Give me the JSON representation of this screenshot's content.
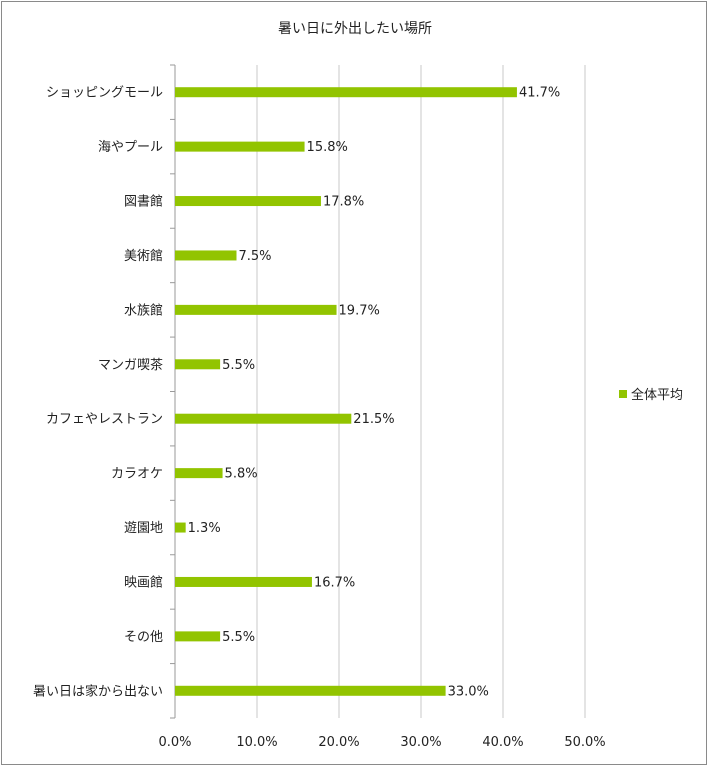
{
  "chart_data": {
    "type": "bar",
    "orientation": "horizontal",
    "title": "暑い日に外出したい場所",
    "categories": [
      "ショッピングモール",
      "海やプール",
      "図書館",
      "美術館",
      "水族館",
      "マンガ喫茶",
      "カフェやレストラン",
      "カラオケ",
      "遊園地",
      "映画館",
      "その他",
      "暑い日は家から出ない"
    ],
    "series": [
      {
        "name": "全体平均",
        "color": "#92c400",
        "values": [
          41.7,
          15.8,
          17.8,
          7.5,
          19.7,
          5.5,
          21.5,
          5.8,
          1.3,
          16.7,
          5.5,
          33.0
        ],
        "labels": [
          "41.7%",
          "15.8%",
          "17.8%",
          "7.5%",
          "19.7%",
          "5.5%",
          "21.5%",
          "5.8%",
          "1.3%",
          "16.7%",
          "5.5%",
          "33.0%"
        ]
      }
    ],
    "xlim": [
      0,
      50
    ],
    "x_ticks": [
      "0.0%",
      "10.0%",
      "20.0%",
      "30.0%",
      "40.0%",
      "50.0%"
    ],
    "grid": "vertical",
    "legend_position": "right"
  }
}
